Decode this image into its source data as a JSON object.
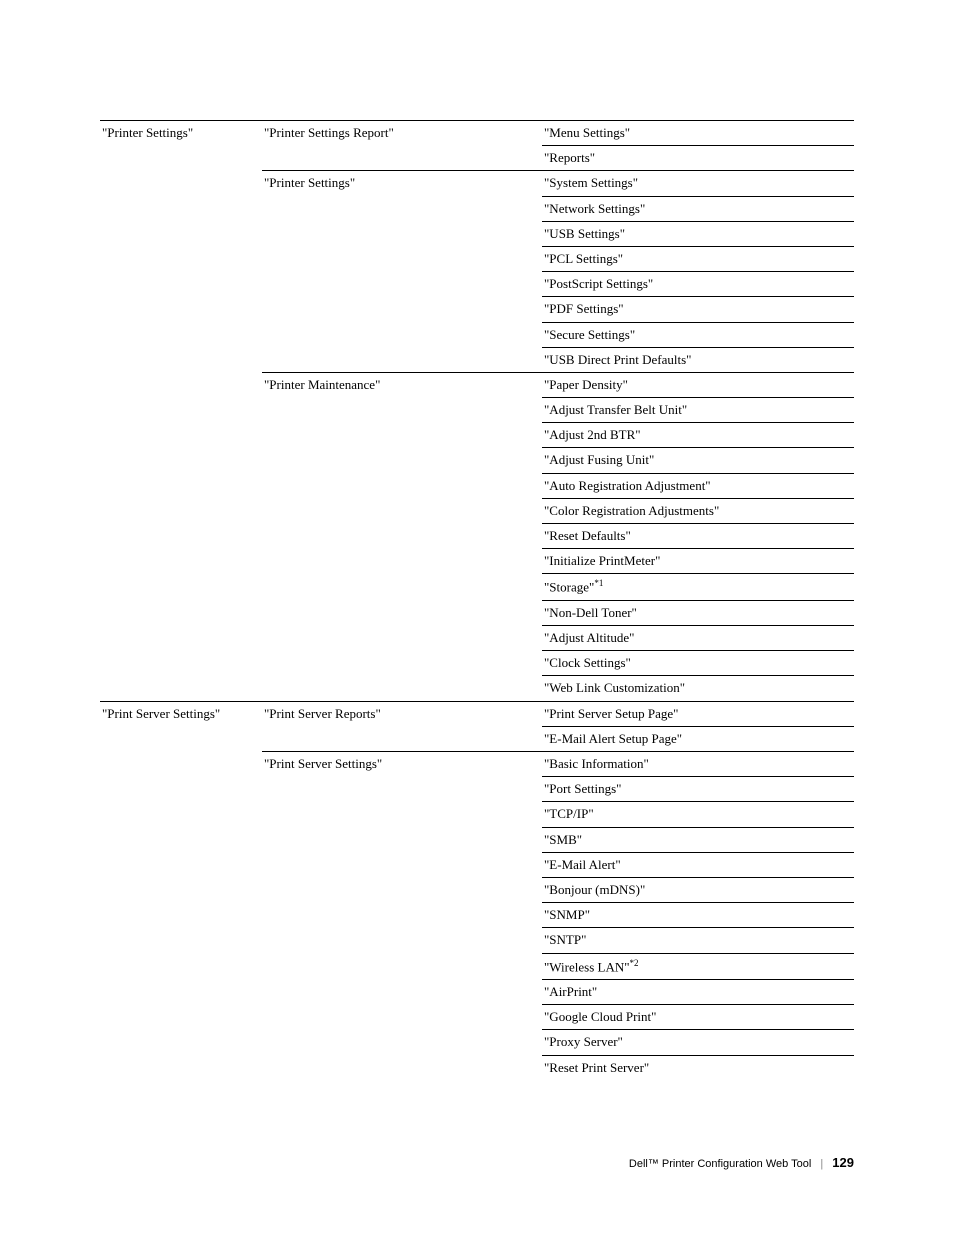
{
  "table": {
    "rows": [
      {
        "col1": "\"Printer Settings\"",
        "col2": "\"Printer Settings Report\"",
        "col3": "\"Menu Settings\"",
        "firstGroup": true
      },
      {
        "col1": "",
        "col2": "",
        "col3": "\"Reports\""
      },
      {
        "col1": "",
        "col2": "\"Printer Settings\"",
        "col3": "\"System Settings\""
      },
      {
        "col1": "",
        "col2": "",
        "col3": "\"Network Settings\""
      },
      {
        "col1": "",
        "col2": "",
        "col3": "\"USB Settings\""
      },
      {
        "col1": "",
        "col2": "",
        "col3": "\"PCL Settings\""
      },
      {
        "col1": "",
        "col2": "",
        "col3": "\"PostScript Settings\""
      },
      {
        "col1": "",
        "col2": "",
        "col3": "\"PDF Settings\""
      },
      {
        "col1": "",
        "col2": "",
        "col3": "\"Secure Settings\""
      },
      {
        "col1": "",
        "col2": "",
        "col3": "\"USB Direct Print Defaults\""
      },
      {
        "col1": "",
        "col2": "\"Printer Maintenance\"",
        "col3": "\"Paper Density\""
      },
      {
        "col1": "",
        "col2": "",
        "col3": "\"Adjust Transfer Belt Unit\""
      },
      {
        "col1": "",
        "col2": "",
        "col3": "\"Adjust 2nd BTR\""
      },
      {
        "col1": "",
        "col2": "",
        "col3": "\"Adjust Fusing Unit\""
      },
      {
        "col1": "",
        "col2": "",
        "col3": "\"Auto Registration Adjustment\""
      },
      {
        "col1": "",
        "col2": "",
        "col3": "\"Color Registration Adjustments\""
      },
      {
        "col1": "",
        "col2": "",
        "col3": "\"Reset Defaults\""
      },
      {
        "col1": "",
        "col2": "",
        "col3": "\"Initialize PrintMeter\""
      },
      {
        "col1": "",
        "col2": "",
        "col3": "\"Storage\"",
        "sup": "*1"
      },
      {
        "col1": "",
        "col2": "",
        "col3": "\"Non-Dell Toner\""
      },
      {
        "col1": "",
        "col2": "",
        "col3": "\"Adjust Altitude\""
      },
      {
        "col1": "",
        "col2": "",
        "col3": "\"Clock Settings\""
      },
      {
        "col1": "",
        "col2": "",
        "col3": "\"Web Link Customization\""
      },
      {
        "col1": "\"Print Server Settings\"",
        "col2": "\"Print Server Reports\"",
        "col3": "\"Print Server Setup Page\"",
        "firstGroup": true
      },
      {
        "col1": "",
        "col2": "",
        "col3": "\"E-Mail Alert Setup Page\""
      },
      {
        "col1": "",
        "col2": "\"Print Server Settings\"",
        "col3": "\"Basic Information\""
      },
      {
        "col1": "",
        "col2": "",
        "col3": "\"Port Settings\""
      },
      {
        "col1": "",
        "col2": "",
        "col3": "\"TCP/IP\""
      },
      {
        "col1": "",
        "col2": "",
        "col3": "\"SMB\""
      },
      {
        "col1": "",
        "col2": "",
        "col3": "\"E-Mail Alert\""
      },
      {
        "col1": "",
        "col2": "",
        "col3": "\"Bonjour (mDNS)\""
      },
      {
        "col1": "",
        "col2": "",
        "col3": "\"SNMP\""
      },
      {
        "col1": "",
        "col2": "",
        "col3": "\"SNTP\""
      },
      {
        "col1": "",
        "col2": "",
        "col3": "\"Wireless LAN\"",
        "sup": "*2"
      },
      {
        "col1": "",
        "col2": "",
        "col3": "\"AirPrint\""
      },
      {
        "col1": "",
        "col2": "",
        "col3": "\"Google Cloud Print\""
      },
      {
        "col1": "",
        "col2": "",
        "col3": "\"Proxy Server\""
      },
      {
        "col1": "",
        "col2": "",
        "col3": "\"Reset Print Server\"",
        "noBottom": true
      }
    ]
  },
  "footer": {
    "title": "Dell™ Printer Configuration Web Tool",
    "page": "129"
  }
}
